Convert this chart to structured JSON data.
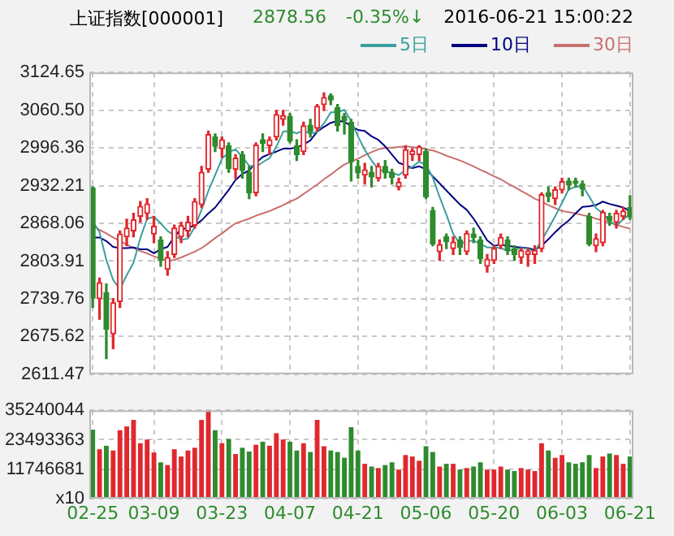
{
  "chart_data": [
    {
      "type": "candlestick",
      "title": "上证指数[000001]",
      "annotations": [
        "2878.56",
        "-0.35%↓",
        "2016-06-21 15:00:22"
      ],
      "categories": [
        null,
        null,
        null,
        null,
        null,
        null,
        null,
        null,
        null,
        null,
        null,
        null,
        null,
        null,
        null,
        null,
        null,
        null,
        null,
        null,
        null,
        null,
        null,
        null,
        null,
        null,
        null,
        null,
        null,
        null,
        null,
        null,
        null,
        null,
        null,
        null,
        null,
        null,
        null,
        null,
        null,
        null,
        null,
        null,
        null,
        null,
        null,
        null,
        null,
        null,
        null,
        null,
        null,
        null,
        null,
        null,
        null,
        null,
        null,
        null,
        null,
        null,
        null,
        null,
        null,
        null,
        null,
        null,
        null,
        null,
        null,
        null,
        null,
        null,
        null,
        null,
        null,
        null,
        null,
        null
      ],
      "ohlc": [
        [
          2928,
          2930,
          2725,
          2741
        ],
        [
          2740,
          2775,
          2705,
          2767
        ],
        [
          2750,
          2765,
          2638,
          2688
        ],
        [
          2680,
          2740,
          2655,
          2733
        ],
        [
          2735,
          2855,
          2725,
          2850
        ],
        [
          2845,
          2875,
          2830,
          2860
        ],
        [
          2855,
          2885,
          2845,
          2874
        ],
        [
          2880,
          2905,
          2870,
          2897
        ],
        [
          2885,
          2910,
          2875,
          2901
        ],
        [
          2850,
          2880,
          2835,
          2863
        ],
        [
          2840,
          2845,
          2795,
          2805
        ],
        [
          2790,
          2820,
          2780,
          2810
        ],
        [
          2815,
          2865,
          2810,
          2860
        ],
        [
          2845,
          2870,
          2835,
          2864
        ],
        [
          2855,
          2880,
          2845,
          2870
        ],
        [
          2865,
          2910,
          2860,
          2905
        ],
        [
          2900,
          2965,
          2895,
          2955
        ],
        [
          2960,
          3025,
          2955,
          3019
        ],
        [
          3015,
          3020,
          2990,
          2999
        ],
        [
          2995,
          3015,
          2980,
          3010
        ],
        [
          3000,
          3005,
          2955,
          2961
        ],
        [
          2960,
          2985,
          2945,
          2979
        ],
        [
          2985,
          2990,
          2945,
          2958
        ],
        [
          2955,
          2965,
          2910,
          2920
        ],
        [
          2920,
          3005,
          2915,
          3001
        ],
        [
          3010,
          3020,
          2990,
          3004
        ],
        [
          3000,
          3015,
          2985,
          3010
        ],
        [
          3015,
          3060,
          3010,
          3053
        ],
        [
          3045,
          3060,
          3035,
          3051
        ],
        [
          3050,
          3055,
          3005,
          3008
        ],
        [
          3000,
          3010,
          2975,
          2985
        ],
        [
          2990,
          3040,
          2985,
          3034
        ],
        [
          3035,
          3045,
          3015,
          3024
        ],
        [
          3030,
          3070,
          3025,
          3067
        ],
        [
          3070,
          3090,
          3060,
          3082
        ],
        [
          3085,
          3088,
          3070,
          3078
        ],
        [
          3065,
          3070,
          3025,
          3034
        ],
        [
          3050,
          3055,
          3020,
          3043
        ],
        [
          3040,
          3045,
          2940,
          2973
        ],
        [
          2965,
          2975,
          2945,
          2954
        ],
        [
          2950,
          2970,
          2935,
          2959
        ],
        [
          2955,
          2965,
          2930,
          2947
        ],
        [
          2945,
          2970,
          2940,
          2965
        ],
        [
          2965,
          2975,
          2945,
          2954
        ],
        [
          2955,
          2960,
          2935,
          2946
        ],
        [
          2930,
          2945,
          2925,
          2938
        ],
        [
          2950,
          3000,
          2945,
          2993
        ],
        [
          2985,
          2995,
          2975,
          2991
        ],
        [
          2985,
          3000,
          2975,
          2998
        ],
        [
          2990,
          2995,
          2910,
          2913
        ],
        [
          2890,
          2895,
          2830,
          2833
        ],
        [
          2820,
          2840,
          2805,
          2832
        ],
        [
          2845,
          2850,
          2825,
          2837
        ],
        [
          2825,
          2845,
          2815,
          2836
        ],
        [
          2840,
          2845,
          2815,
          2827
        ],
        [
          2820,
          2855,
          2815,
          2851
        ],
        [
          2850,
          2860,
          2835,
          2844
        ],
        [
          2840,
          2845,
          2800,
          2808
        ],
        [
          2795,
          2815,
          2785,
          2807
        ],
        [
          2805,
          2830,
          2800,
          2825
        ],
        [
          2830,
          2850,
          2825,
          2844
        ],
        [
          2840,
          2845,
          2815,
          2822
        ],
        [
          2825,
          2830,
          2805,
          2815
        ],
        [
          2810,
          2825,
          2800,
          2822
        ],
        [
          2815,
          2825,
          2795,
          2821
        ],
        [
          2815,
          2830,
          2800,
          2822
        ],
        [
          2825,
          2920,
          2820,
          2917
        ],
        [
          2920,
          2930,
          2905,
          2914
        ],
        [
          2910,
          2930,
          2900,
          2925
        ],
        [
          2925,
          2945,
          2920,
          2939
        ],
        [
          2940,
          2945,
          2925,
          2934
        ],
        [
          2940,
          2945,
          2930,
          2936
        ],
        [
          2935,
          2940,
          2915,
          2927
        ],
        [
          2880,
          2885,
          2830,
          2833
        ],
        [
          2830,
          2850,
          2820,
          2842
        ],
        [
          2835,
          2890,
          2830,
          2887
        ],
        [
          2880,
          2885,
          2865,
          2873
        ],
        [
          2870,
          2890,
          2860,
          2885
        ],
        [
          2880,
          2895,
          2875,
          2889
        ],
        [
          2895,
          2915,
          2875,
          2879
        ]
      ],
      "series": [
        {
          "type": "line",
          "name": "5日",
          "color": "#3a9e9e",
          "values": [
            2872,
            2853,
            2806,
            2772,
            2756,
            2780,
            2801,
            2843,
            2876,
            2879,
            2868,
            2855,
            2848,
            2840,
            2842,
            2862,
            2891,
            2923,
            2950,
            2978,
            2989,
            2994,
            2981,
            2966,
            2964,
            2972,
            2979,
            2998,
            3024,
            3025,
            3021,
            3026,
            3020,
            3024,
            3038,
            3057,
            3057,
            3061,
            3042,
            3016,
            2993,
            2975,
            2960,
            2956,
            2954,
            2950,
            2959,
            2964,
            2973,
            2967,
            2946,
            2913,
            2883,
            2850,
            2833,
            2837,
            2839,
            2833,
            2827,
            2827,
            2826,
            2821,
            2823,
            2826,
            2825,
            2820,
            2839,
            2859,
            2880,
            2903,
            2926,
            2930,
            2932,
            2914,
            2894,
            2885,
            2872,
            2864,
            2875,
            2883
          ]
        },
        {
          "type": "line",
          "name": "10日",
          "color": "#000080",
          "values": [
            2844,
            2844,
            2838,
            2828,
            2826,
            2826,
            2827,
            2824,
            2824,
            2817,
            2824,
            2828,
            2845,
            2858,
            2860,
            2865,
            2873,
            2885,
            2895,
            2910,
            2925,
            2942,
            2952,
            2958,
            2971,
            2981,
            2986,
            2990,
            2995,
            2995,
            2997,
            3002,
            3009,
            3024,
            3032,
            3039,
            3042,
            3041,
            3033,
            3027,
            3025,
            3016,
            3010,
            2999,
            2985,
            2971,
            2967,
            2962,
            2965,
            2960,
            2948,
            2936,
            2924,
            2912,
            2900,
            2891,
            2876,
            2858,
            2839,
            2830,
            2831,
            2830,
            2828,
            2827,
            2826,
            2823,
            2830,
            2841,
            2853,
            2864,
            2873,
            2885,
            2896,
            2897,
            2899,
            2905,
            2901,
            2898,
            2895,
            2889
          ]
        },
        {
          "type": "line",
          "name": "30日",
          "color": "#c87070",
          "values": [
            2864,
            2857,
            2851,
            2844,
            2838,
            2832,
            2826,
            2821,
            2817,
            2812,
            2808,
            2804,
            2806,
            2810,
            2815,
            2820,
            2826,
            2834,
            2843,
            2851,
            2860,
            2868,
            2872,
            2876,
            2881,
            2885,
            2889,
            2894,
            2899,
            2905,
            2910,
            2918,
            2926,
            2934,
            2943,
            2951,
            2960,
            2968,
            2973,
            2978,
            2984,
            2989,
            2994,
            2996,
            2997,
            2998,
            2999,
            2998,
            2996,
            2994,
            2992,
            2988,
            2983,
            2979,
            2975,
            2970,
            2965,
            2959,
            2954,
            2948,
            2943,
            2936,
            2930,
            2923,
            2917,
            2910,
            2905,
            2899,
            2894,
            2889,
            2887,
            2885,
            2882,
            2880,
            2876,
            2873,
            2869,
            2866,
            2862,
            2859
          ]
        }
      ],
      "ylim": [
        2611.47,
        3124.65
      ],
      "yticks": [
        2611.47,
        2675.62,
        2739.76,
        2803.91,
        2868.06,
        2932.21,
        2996.36,
        {
          "value": 3060.5,
          "label": "3060.50"
        },
        3124.65
      ],
      "grid": true,
      "legend": "top right",
      "tick_labels": "y"
    },
    {
      "type": "bar",
      "categories": [
        "02-25",
        null,
        null,
        null,
        null,
        null,
        null,
        null,
        null,
        "03-09",
        null,
        null,
        null,
        null,
        null,
        null,
        null,
        null,
        null,
        "03-23",
        null,
        null,
        null,
        null,
        null,
        null,
        null,
        null,
        null,
        "04-07",
        null,
        null,
        null,
        null,
        null,
        null,
        null,
        null,
        null,
        "04-21",
        null,
        null,
        null,
        null,
        null,
        null,
        null,
        null,
        null,
        "05-06",
        null,
        null,
        null,
        null,
        null,
        null,
        null,
        null,
        null,
        "05-20",
        null,
        null,
        null,
        null,
        null,
        null,
        null,
        null,
        null,
        "06-03",
        null,
        null,
        null,
        null,
        null,
        null,
        null,
        null,
        null,
        "06-21"
      ],
      "values": [
        27500000,
        19700000,
        21100000,
        19200000,
        27300000,
        28800000,
        31400000,
        22100000,
        23600000,
        18400000,
        14500000,
        13400000,
        19700000,
        16800000,
        19200000,
        20300000,
        31400000,
        35200000,
        27300000,
        22100000,
        23800000,
        17800000,
        20300000,
        18800000,
        21500000,
        22700000,
        21100000,
        26100000,
        23600000,
        22700000,
        19200000,
        22100000,
        18600000,
        31400000,
        20900000,
        19200000,
        18600000,
        16300000,
        28500000,
        19200000,
        13900000,
        12800000,
        12200000,
        13400000,
        14500000,
        11600000,
        17400000,
        16800000,
        15100000,
        20900000,
        18600000,
        12800000,
        13900000,
        13900000,
        11600000,
        12200000,
        12800000,
        14500000,
        11600000,
        11600000,
        12800000,
        11600000,
        11000000,
        12200000,
        11600000,
        11000000,
        22100000,
        19200000,
        16300000,
        17400000,
        14500000,
        13900000,
        14500000,
        17400000,
        12200000,
        16800000,
        18000000,
        17400000,
        13900000,
        16800000
      ],
      "colors": [
        "#2e8b2e",
        "#e0282e",
        "#2e8b2e",
        "#e0282e",
        "#e0282e",
        "#e0282e",
        "#e0282e",
        "#e0282e",
        "#e0282e",
        "#e0282e",
        "#2e8b2e",
        "#e0282e",
        "#e0282e",
        "#e0282e",
        "#e0282e",
        "#e0282e",
        "#e0282e",
        "#e0282e",
        "#2e8b2e",
        "#e0282e",
        "#2e8b2e",
        "#e0282e",
        "#2e8b2e",
        "#2e8b2e",
        "#e0282e",
        "#2e8b2e",
        "#e0282e",
        "#e0282e",
        "#e0282e",
        "#2e8b2e",
        "#2e8b2e",
        "#e0282e",
        "#2e8b2e",
        "#e0282e",
        "#e0282e",
        "#2e8b2e",
        "#2e8b2e",
        "#2e8b2e",
        "#2e8b2e",
        "#2e8b2e",
        "#e0282e",
        "#2e8b2e",
        "#e0282e",
        "#2e8b2e",
        "#2e8b2e",
        "#e0282e",
        "#e0282e",
        "#e0282e",
        "#e0282e",
        "#2e8b2e",
        "#2e8b2e",
        "#e0282e",
        "#2e8b2e",
        "#e0282e",
        "#2e8b2e",
        "#e0282e",
        "#2e8b2e",
        "#2e8b2e",
        "#e0282e",
        "#e0282e",
        "#e0282e",
        "#2e8b2e",
        "#2e8b2e",
        "#e0282e",
        "#e0282e",
        "#e0282e",
        "#e0282e",
        "#2e8b2e",
        "#e0282e",
        "#e0282e",
        "#2e8b2e",
        "#2e8b2e",
        "#2e8b2e",
        "#2e8b2e",
        "#e0282e",
        "#e0282e",
        "#2e8b2e",
        "#e0282e",
        "#e0282e",
        "#2e8b2e"
      ],
      "ylim": [
        0,
        35240044
      ],
      "yticks": [
        {
          "value": 0,
          "label": "x10"
        },
        11746681,
        23493363,
        35240044
      ],
      "grid": true
    }
  ]
}
